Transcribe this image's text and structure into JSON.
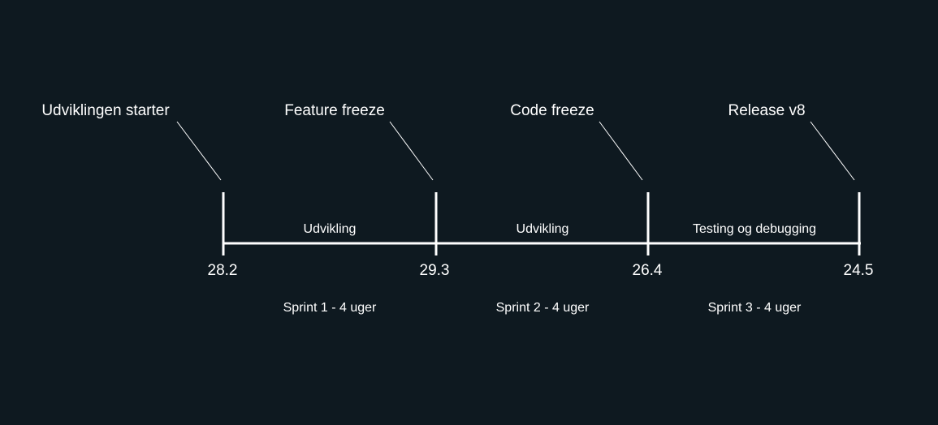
{
  "timeline": {
    "milestones": [
      {
        "label": "Udviklingen starter",
        "date": "28.2"
      },
      {
        "label": "Feature freeze",
        "date": "29.3"
      },
      {
        "label": "Code freeze",
        "date": "26.4"
      },
      {
        "label": "Release v8",
        "date": "24.5"
      }
    ],
    "phases": [
      {
        "label": "Udvikling",
        "sprint": "Sprint 1 - 4 uger"
      },
      {
        "label": "Udvikling",
        "sprint": "Sprint 2 - 4 uger"
      },
      {
        "label": "Testing og debugging",
        "sprint": "Sprint 3 - 4 uger"
      }
    ]
  },
  "colors": {
    "background": "#0e1920",
    "line": "#ffffff",
    "text": "#ffffff"
  }
}
